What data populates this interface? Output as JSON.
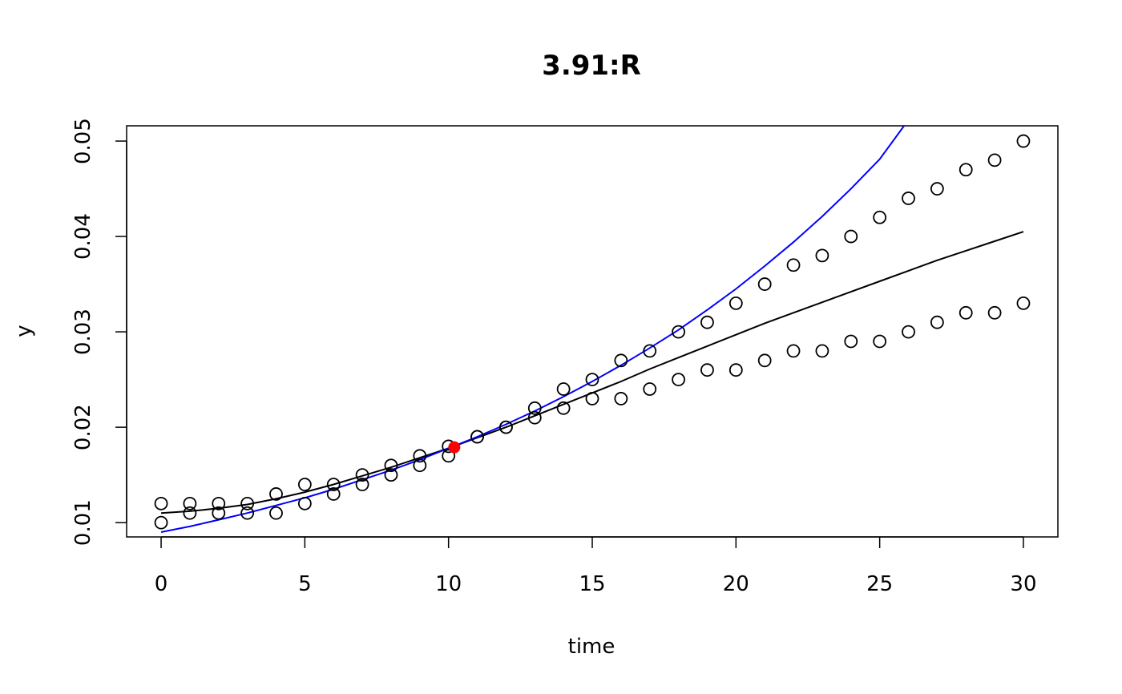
{
  "chart_data": {
    "type": "scatter",
    "title": "3.91:R",
    "xlabel": "time",
    "ylabel": "y",
    "xlim": [
      -1.2,
      31.2
    ],
    "ylim": [
      0.0085,
      0.0516
    ],
    "xticks": [
      0,
      5,
      10,
      15,
      20,
      25,
      30
    ],
    "yticks": [
      0.01,
      0.02,
      0.03,
      0.04,
      0.05
    ],
    "xtick_labels": [
      "0",
      "5",
      "10",
      "15",
      "20",
      "25",
      "30"
    ],
    "ytick_labels": [
      "0.01",
      "0.02",
      "0.03",
      "0.04",
      "0.05"
    ],
    "grid": false,
    "points": {
      "color": "#000000",
      "x": [
        0,
        1,
        2,
        3,
        4,
        5,
        6,
        7,
        8,
        9,
        10,
        11,
        12,
        13,
        14,
        15,
        16,
        17,
        18,
        19,
        20,
        21,
        22,
        23,
        24,
        25,
        26,
        27,
        28,
        29,
        30,
        0,
        1,
        2,
        3,
        4,
        5,
        6,
        7,
        8,
        9,
        10,
        11,
        12,
        13,
        14,
        15,
        16,
        17,
        18,
        19,
        20,
        21,
        22,
        23,
        24,
        25,
        26,
        27,
        28,
        29,
        30
      ],
      "y": [
        0.01,
        0.011,
        0.011,
        0.011,
        0.011,
        0.012,
        0.013,
        0.014,
        0.015,
        0.016,
        0.017,
        0.019,
        0.02,
        0.021,
        0.022,
        0.023,
        0.023,
        0.024,
        0.025,
        0.026,
        0.026,
        0.027,
        0.028,
        0.028,
        0.029,
        0.029,
        0.03,
        0.031,
        0.032,
        0.032,
        0.033,
        0.012,
        0.012,
        0.012,
        0.012,
        0.013,
        0.014,
        0.014,
        0.015,
        0.016,
        0.017,
        0.018,
        0.019,
        0.02,
        0.022,
        0.024,
        0.025,
        0.027,
        0.028,
        0.03,
        0.031,
        0.033,
        0.035,
        0.037,
        0.038,
        0.04,
        0.042,
        0.044,
        0.045,
        0.047,
        0.048,
        0.05
      ]
    },
    "series": [
      {
        "color": "#000000",
        "x": [
          0,
          1,
          2,
          3,
          4,
          5,
          6,
          7,
          8,
          9,
          10,
          11,
          12,
          13,
          14,
          15,
          16,
          17,
          18,
          19,
          20,
          21,
          22,
          23,
          24,
          25,
          26,
          27,
          28,
          29,
          30
        ],
        "y": [
          0.011,
          0.0112,
          0.0115,
          0.0119,
          0.0125,
          0.0132,
          0.014,
          0.0149,
          0.0158,
          0.0168,
          0.0178,
          0.0189,
          0.02,
          0.0212,
          0.0224,
          0.0236,
          0.0248,
          0.0261,
          0.0273,
          0.0285,
          0.0297,
          0.0309,
          0.032,
          0.0331,
          0.0342,
          0.0353,
          0.0364,
          0.0375,
          0.0385,
          0.0395,
          0.0405
        ]
      },
      {
        "color": "#0000ff",
        "x": [
          0,
          1,
          2,
          3,
          4,
          5,
          6,
          7,
          8,
          9,
          10,
          11,
          12,
          13,
          14,
          15,
          16,
          17,
          18,
          19,
          20,
          21,
          22,
          23,
          24,
          25,
          25.85
        ],
        "y": [
          0.009,
          0.0096,
          0.0103,
          0.011,
          0.0118,
          0.0126,
          0.0135,
          0.0145,
          0.0155,
          0.0166,
          0.0178,
          0.019,
          0.0203,
          0.0217,
          0.0232,
          0.0248,
          0.0265,
          0.0283,
          0.0302,
          0.0323,
          0.0345,
          0.0369,
          0.0394,
          0.0421,
          0.045,
          0.0481,
          0.0516
        ]
      }
    ],
    "highlight": {
      "x": 10.2,
      "y": 0.0179,
      "color": "#ff0000"
    }
  }
}
